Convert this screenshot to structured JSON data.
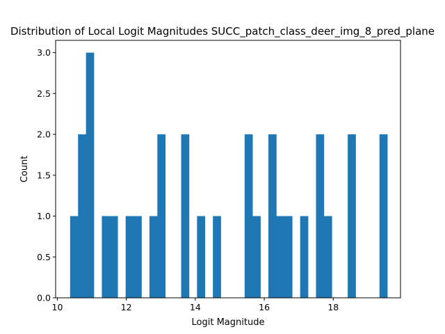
{
  "chart_data": {
    "type": "bar",
    "title": "Distribution of Local Logit Magnitudes SUCC_patch_class_deer_img_8_pred_plane",
    "xlabel": "Logit Magnitude",
    "ylabel": "Count",
    "xlim": [
      9.95,
      19.95
    ],
    "ylim": [
      0,
      3.15
    ],
    "x_ticks": [
      10,
      12,
      14,
      16,
      18
    ],
    "y_ticks": [
      0.0,
      0.5,
      1.0,
      1.5,
      2.0,
      2.5,
      3.0
    ],
    "x_tick_labels": [
      "10",
      "12",
      "14",
      "16",
      "18"
    ],
    "y_tick_labels": [
      "0.0",
      "0.5",
      "1.0",
      "1.5",
      "2.0",
      "2.5",
      "3.0"
    ],
    "bin_edges": [
      10.37,
      10.6,
      10.83,
      11.06,
      11.29,
      11.52,
      11.75,
      11.98,
      12.21,
      12.44,
      12.67,
      12.9,
      13.13,
      13.36,
      13.59,
      13.82,
      14.05,
      14.28,
      14.51,
      14.74,
      14.97,
      15.2,
      15.43,
      15.66,
      15.89,
      16.12,
      16.35,
      16.58,
      16.81,
      17.04,
      17.27,
      17.5,
      17.73,
      17.96,
      18.19,
      18.42,
      18.65,
      18.88,
      19.11,
      19.34,
      19.57
    ],
    "values": [
      1,
      2,
      3,
      0,
      1,
      1,
      0,
      1,
      1,
      0,
      1,
      2,
      0,
      0,
      2,
      0,
      1,
      0,
      1,
      0,
      0,
      0,
      2,
      1,
      0,
      2,
      1,
      1,
      0,
      1,
      0,
      2,
      1,
      0,
      0,
      2,
      0,
      0,
      0,
      2
    ],
    "bar_color": "#1f77b4",
    "grid": false
  }
}
